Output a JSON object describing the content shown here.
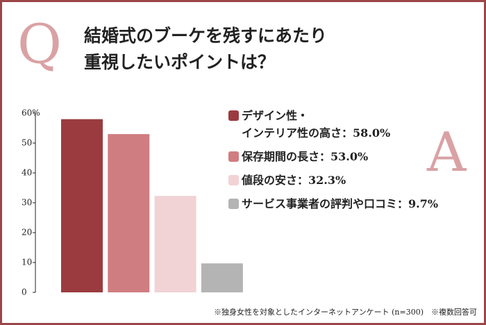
{
  "q_letter": "Q",
  "a_letter": "A",
  "chart_data": {
    "type": "bar",
    "title": "結婚式のブーケを残すにあたり\n重視したいポイントは？",
    "categories": [
      "デザイン性・\nインテリア性の高さ",
      "保存期間の長さ",
      "値段の安さ",
      "サービス事業者の評判や口コミ"
    ],
    "label_separator": "：",
    "values": [
      58.0,
      53.0,
      32.3,
      9.7
    ],
    "value_labels": [
      "58.0%",
      "53.0%",
      "32.3%",
      "9.7%"
    ],
    "colors": [
      "#9b3b3f",
      "#d07d81",
      "#f2d3d5",
      "#b4b4b4"
    ],
    "ylim": [
      0,
      60
    ],
    "yticks": [
      0,
      10,
      20,
      30,
      40,
      50,
      {
        "value": 60,
        "label": "60%"
      }
    ],
    "grid": false,
    "footnote": "※独身女性を対象としたインターネットアンケート (n=300)　※複数回答可"
  }
}
